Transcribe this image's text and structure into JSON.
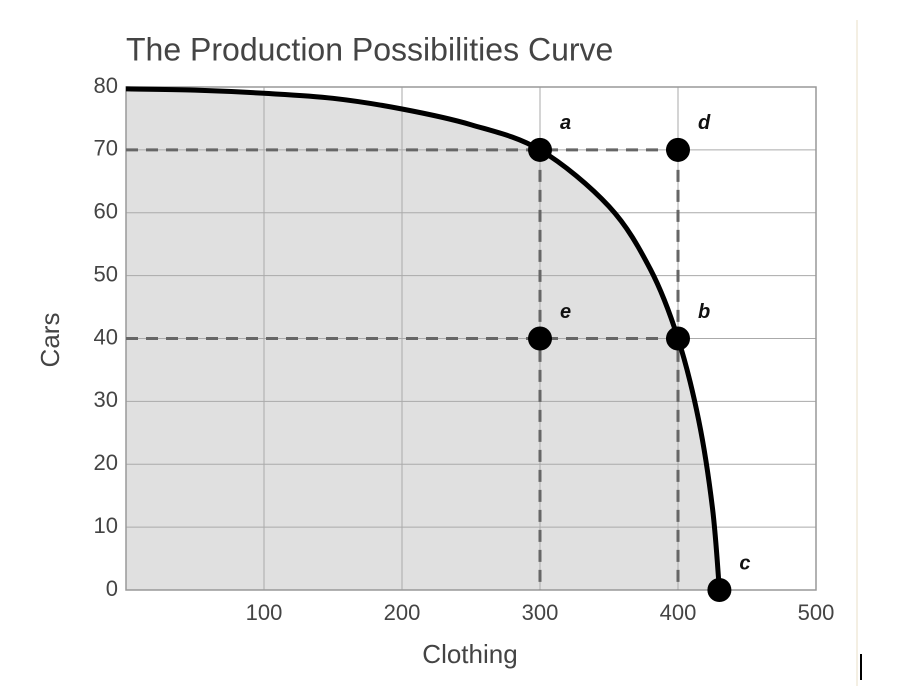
{
  "chart_data": {
    "type": "line",
    "title": "The Production Possibilities Curve",
    "x_label": "Clothing",
    "y_label": "Cars",
    "x": [
      0,
      50,
      100,
      150,
      200,
      250,
      300,
      350,
      380,
      400,
      415,
      425,
      430
    ],
    "values": [
      79.7,
      79.5,
      79,
      78.2,
      76.5,
      74,
      70,
      61,
      51,
      40,
      27,
      13,
      0
    ],
    "color": "#000000",
    "fill_color": "#e0e0e0",
    "points": [
      {
        "label": "a",
        "x": 300,
        "y": 70
      },
      {
        "label": "d",
        "x": 400,
        "y": 70
      },
      {
        "label": "e",
        "x": 300,
        "y": 40
      },
      {
        "label": "b",
        "x": 400,
        "y": 40
      },
      {
        "label": "c",
        "x": 430,
        "y": 0
      }
    ],
    "guides": [
      {
        "from": 0,
        "point": 1
      },
      {
        "from": 0,
        "point": 3
      }
    ],
    "xlim": [
      0,
      500
    ],
    "ylim": [
      0,
      80
    ],
    "xticks": [
      100,
      200,
      300,
      400,
      500
    ],
    "yticks": [
      0,
      10,
      20,
      30,
      40,
      50,
      60,
      70,
      80
    ],
    "grid": true
  }
}
